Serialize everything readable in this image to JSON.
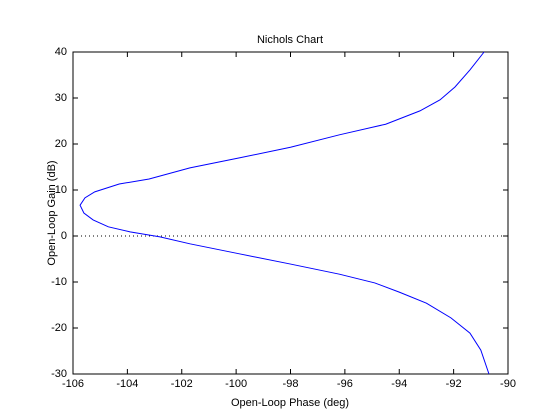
{
  "chart_data": {
    "type": "line",
    "title": "Nichols Chart",
    "x_label": "Open-Loop Phase (deg)",
    "y_label": "Open-Loop Gain (dB)",
    "x": [
      -90.88,
      -91.4,
      -91.95,
      -92.5,
      -93.24,
      -94.5,
      -96.2,
      -98.0,
      -99.86,
      -101.7,
      -103.2,
      -104.3,
      -105.2,
      -105.56,
      -105.74,
      -105.6,
      -105.26,
      -104.7,
      -103.9,
      -102.8,
      -101.7,
      -99.86,
      -98.0,
      -96.2,
      -94.9,
      -94.0,
      -93.0,
      -92.1,
      -91.4,
      -91.0,
      -90.7
    ],
    "series": [
      {
        "color": "#0000ff",
        "values": [
          40,
          36.1,
          32.4,
          29.6,
          27.2,
          24.3,
          22.0,
          19.3,
          17.0,
          14.8,
          12.4,
          11.3,
          9.6,
          8.3,
          6.7,
          5.0,
          3.5,
          2.0,
          0.9,
          -0.2,
          -1.7,
          -3.9,
          -6.1,
          -8.3,
          -10.2,
          -12.2,
          -14.6,
          -17.8,
          -21.1,
          -24.8,
          -30
        ]
      }
    ],
    "xlim": [
      -106,
      -90
    ],
    "ylim": [
      -30,
      40
    ],
    "xticks": [
      -106,
      -104,
      -102,
      -100,
      -98,
      -96,
      -94,
      -92,
      -90
    ],
    "yticks": [
      -30,
      -20,
      -10,
      0,
      10,
      20,
      30,
      40
    ],
    "reference_gain": 0
  }
}
